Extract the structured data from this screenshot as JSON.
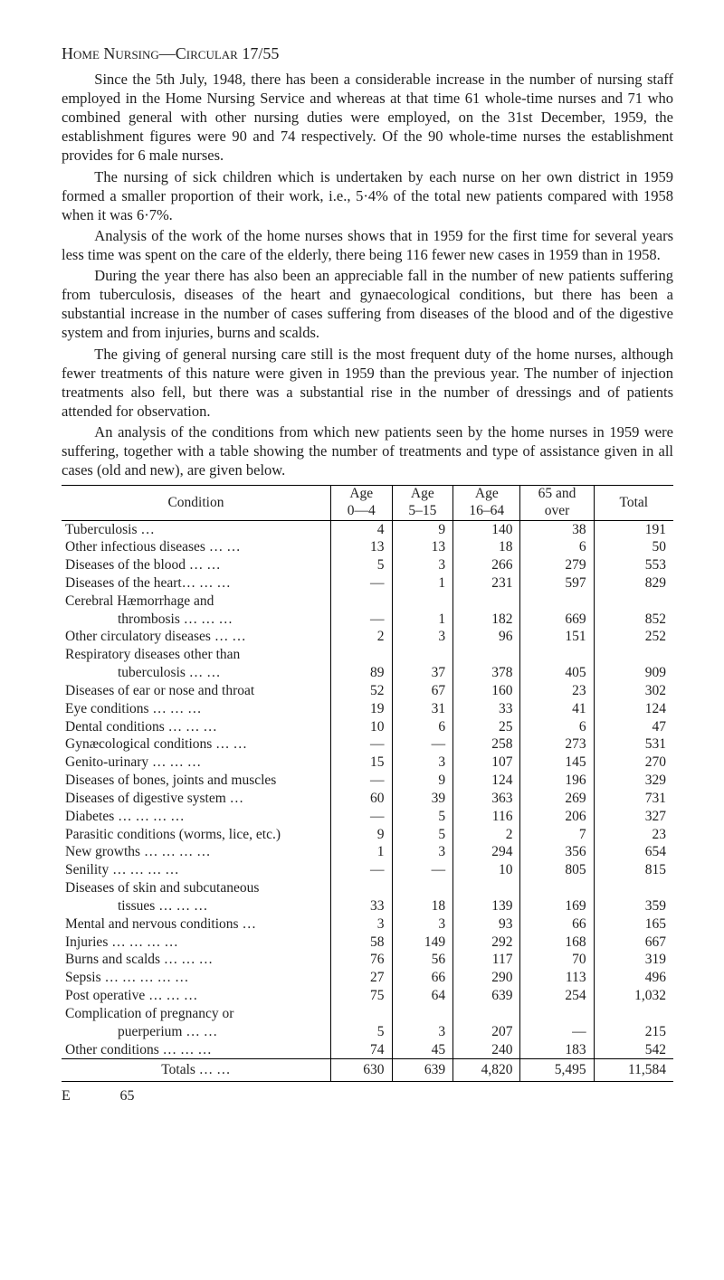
{
  "heading": "Home Nursing—Circular 17/55",
  "paragraphs": [
    "Since the 5th July, 1948, there has been a considerable increase in the number of nursing staff employed in the Home Nursing Service and whereas at that time 61 whole-time nurses and 71 who combined general with other nursing duties were employed, on the 31st December, 1959, the establishment figures were 90 and 74 respectively.  Of the 90 whole-time nurses the establishment provides for 6 male nurses.",
    "The nursing of sick children which is undertaken by each nurse on her own district in 1959 formed a smaller proportion of their work, i.e., 5·4% of the total new patients compared with 1958 when it was 6·7%.",
    "Analysis of the work of the home nurses shows that in 1959 for the first time for several years less time was spent on the care of the elderly, there being 116 fewer new cases in 1959 than in 1958.",
    "During the year there has also been an appreciable fall in the number of new patients suffering from tuberculosis, diseases of the heart and gynaecological conditions, but there has been a substantial increase in the number of cases suffering from diseases of the blood and of the digestive system and from injuries, burns and scalds.",
    "The giving of general nursing care still is the most frequent duty of the home nurses, although fewer treatments of this nature were given in 1959 than the previous year.  The number of injection treatments also fell, but there was a substantial rise in the number of dressings and of patients attended for observation.",
    "An analysis of the conditions from which new patients seen by the home nurses in 1959 were suffering, together with a table showing the number of treatments and type of assistance given in all cases (old and new), are given below."
  ],
  "table": {
    "columns": [
      "Condition",
      "Age\n0—4",
      "Age\n5–15",
      "Age\n16–64",
      "65 and\nover",
      "Total"
    ],
    "rows": [
      {
        "label": "Tuberculosis …",
        "v": [
          "4",
          "9",
          "140",
          "38",
          "191"
        ]
      },
      {
        "label": "Other infectious diseases   …   …",
        "v": [
          "13",
          "13",
          "18",
          "6",
          "50"
        ]
      },
      {
        "label": "Diseases of the blood   …   …",
        "v": [
          "5",
          "3",
          "266",
          "279",
          "553"
        ]
      },
      {
        "label": "Diseases of the heart…   …   …",
        "v": [
          "—",
          "1",
          "231",
          "597",
          "829"
        ]
      },
      {
        "label": "Cerebral Hæmorrhage and",
        "v": [
          "",
          "",
          "",
          "",
          ""
        ]
      },
      {
        "label": "thrombosis …   …   …",
        "indent": true,
        "v": [
          "—",
          "1",
          "182",
          "669",
          "852"
        ]
      },
      {
        "label": "Other circulatory diseases   …   …",
        "v": [
          "2",
          "3",
          "96",
          "151",
          "252"
        ]
      },
      {
        "label": "Respiratory   diseases   other   than",
        "v": [
          "",
          "",
          "",
          "",
          ""
        ]
      },
      {
        "label": "tuberculosis   …   …",
        "indent": true,
        "v": [
          "89",
          "37",
          "378",
          "405",
          "909"
        ]
      },
      {
        "label": "Diseases of ear or nose and throat",
        "v": [
          "52",
          "67",
          "160",
          "23",
          "302"
        ]
      },
      {
        "label": "Eye conditions   …   …   …",
        "v": [
          "19",
          "31",
          "33",
          "41",
          "124"
        ]
      },
      {
        "label": "Dental conditions   …   …   …",
        "v": [
          "10",
          "6",
          "25",
          "6",
          "47"
        ]
      },
      {
        "label": "Gynæcological conditions   …   …",
        "v": [
          "—",
          "—",
          "258",
          "273",
          "531"
        ]
      },
      {
        "label": "Genito-urinary   …   …   …",
        "v": [
          "15",
          "3",
          "107",
          "145",
          "270"
        ]
      },
      {
        "label": "Diseases of bones, joints and muscles",
        "v": [
          "—",
          "9",
          "124",
          "196",
          "329"
        ]
      },
      {
        "label": "Diseases of digestive system   …",
        "v": [
          "60",
          "39",
          "363",
          "269",
          "731"
        ]
      },
      {
        "label": "Diabetes   …   …   …   …",
        "v": [
          "—",
          "5",
          "116",
          "206",
          "327"
        ]
      },
      {
        "label": "Parasitic conditions (worms, lice, etc.)",
        "v": [
          "9",
          "5",
          "2",
          "7",
          "23"
        ]
      },
      {
        "label": "New growths …   …   …   …",
        "v": [
          "1",
          "3",
          "294",
          "356",
          "654"
        ]
      },
      {
        "label": "Senility   …   …   …   …",
        "v": [
          "—",
          "—",
          "10",
          "805",
          "815"
        ]
      },
      {
        "label": "Diseases of skin and subcutaneous",
        "v": [
          "",
          "",
          "",
          "",
          ""
        ]
      },
      {
        "label": "tissues   …   …   …",
        "indent": true,
        "v": [
          "33",
          "18",
          "139",
          "169",
          "359"
        ]
      },
      {
        "label": "Mental and nervous conditions   …",
        "v": [
          "3",
          "3",
          "93",
          "66",
          "165"
        ]
      },
      {
        "label": "Injuries   …   …   …   …",
        "v": [
          "58",
          "149",
          "292",
          "168",
          "667"
        ]
      },
      {
        "label": "Burns and scalds   …   …   …",
        "v": [
          "76",
          "56",
          "117",
          "70",
          "319"
        ]
      },
      {
        "label": "Sepsis …   …   …   …   …",
        "v": [
          "27",
          "66",
          "290",
          "113",
          "496"
        ]
      },
      {
        "label": "Post operative   …   …   …",
        "v": [
          "75",
          "64",
          "639",
          "254",
          "1,032"
        ]
      },
      {
        "label": "Complication of pregnancy or",
        "v": [
          "",
          "",
          "",
          "",
          ""
        ]
      },
      {
        "label": "puerperium   …   …",
        "indent": true,
        "v": [
          "5",
          "3",
          "207",
          "—",
          "215"
        ]
      },
      {
        "label": "Other conditions   …   …   …",
        "v": [
          "74",
          "45",
          "240",
          "183",
          "542"
        ]
      }
    ],
    "totals": {
      "label": "Totals   …   …",
      "v": [
        "630",
        "639",
        "4,820",
        "5,495",
        "11,584"
      ]
    }
  },
  "page_note_left": "E",
  "page_number": "65"
}
